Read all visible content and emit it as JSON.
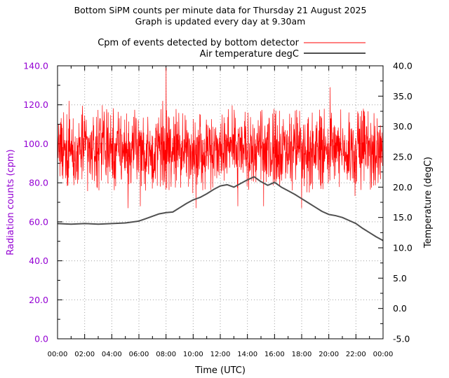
{
  "chart_data": {
    "type": "line",
    "title": "Bottom SiPM counts per minute data for Thursday 21 August 2025",
    "subtitle": "Graph is updated every day at 9.30am",
    "xlabel": "Time (UTC)",
    "ylabel": "Radiation counts (cpm)",
    "y2label": "Temperature (degC)",
    "xlim": [
      0,
      24
    ],
    "ylim": [
      0,
      140
    ],
    "y2lim": [
      -5,
      40
    ],
    "x_ticks": [
      "00:00",
      "02:00",
      "04:00",
      "06:00",
      "08:00",
      "10:00",
      "12:00",
      "14:00",
      "16:00",
      "18:00",
      "20:00",
      "22:00",
      "00:00"
    ],
    "y_ticks": [
      "0.0",
      "20.0",
      "40.0",
      "60.0",
      "80.0",
      "100.0",
      "120.0",
      "140.0"
    ],
    "y2_ticks": [
      "-5.0",
      "0.0",
      "5.0",
      "10.0",
      "15.0",
      "20.0",
      "25.0",
      "30.0",
      "35.0",
      "40.0"
    ],
    "grid": true,
    "legend_position": "top-right",
    "series": [
      {
        "name": "Cpm of events detected by bottom detector",
        "color": "#ff0000",
        "axis": "left",
        "mean": 97,
        "noise_range": [
          80,
          114
        ],
        "spikes": [
          {
            "x": 8.0,
            "y": 139
          },
          {
            "x": 20.1,
            "y": 129
          },
          {
            "x": 0.85,
            "y": 122
          },
          {
            "x": 7.75,
            "y": 122
          },
          {
            "x": 5.2,
            "y": 67
          },
          {
            "x": 6.1,
            "y": 68
          },
          {
            "x": 10.2,
            "y": 67
          },
          {
            "x": 13.3,
            "y": 68
          },
          {
            "x": 15.2,
            "y": 68
          },
          {
            "x": 18.0,
            "y": 67
          },
          {
            "x": 0.4,
            "y": 82
          },
          {
            "x": 24.0,
            "y": 117
          }
        ]
      },
      {
        "name": "Air temperature degC",
        "color": "#505050",
        "axis": "right",
        "x": [
          0,
          1,
          2,
          3,
          4,
          5,
          6,
          6.5,
          7,
          7.5,
          8,
          8.5,
          9,
          9.5,
          10,
          10.5,
          11,
          11.5,
          12,
          12.5,
          13,
          13.5,
          14,
          14.5,
          15,
          15.5,
          16,
          16.5,
          17,
          17.5,
          18,
          18.5,
          19,
          19.5,
          20,
          20.5,
          21,
          21.5,
          22,
          22.5,
          23,
          23.5,
          24
        ],
        "y": [
          14.0,
          13.9,
          14.0,
          13.9,
          14.0,
          14.1,
          14.4,
          14.8,
          15.2,
          15.6,
          15.8,
          15.9,
          16.6,
          17.3,
          17.9,
          18.3,
          18.9,
          19.6,
          20.2,
          20.4,
          20.0,
          20.6,
          21.2,
          21.7,
          20.9,
          20.3,
          20.8,
          20.0,
          19.4,
          18.8,
          18.1,
          17.4,
          16.7,
          16.0,
          15.5,
          15.3,
          15.0,
          14.5,
          14.0,
          13.2,
          12.5,
          11.8,
          11.2
        ]
      }
    ]
  }
}
